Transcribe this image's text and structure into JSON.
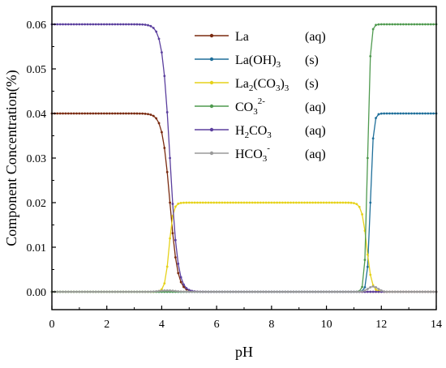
{
  "chart_data": {
    "type": "line",
    "xlabel": "pH",
    "ylabel": "Component Concentration(%)",
    "xlim": [
      0,
      14
    ],
    "ylim": [
      -0.004,
      0.064
    ],
    "x_ticks": [
      "0",
      "2",
      "4",
      "6",
      "8",
      "10",
      "12",
      "14"
    ],
    "y_ticks": [
      "0.00",
      "0.01",
      "0.02",
      "0.03",
      "0.04",
      "0.05",
      "0.06"
    ],
    "grid": false,
    "legend_position": "top-right",
    "x_sampling": {
      "start": 0,
      "end": 14,
      "step": 0.1
    },
    "series": [
      {
        "name": "La",
        "name_parts": [
          {
            "t": "La"
          }
        ],
        "state": "(aq)",
        "color": "#7a2a0f",
        "curve": "lam",
        "points": [
          [
            0,
            0.04
          ],
          [
            4.0,
            0.04
          ],
          [
            4.1,
            0.034
          ],
          [
            4.3,
            0.018
          ],
          [
            4.5,
            0.009
          ],
          [
            5.0,
            0.0025
          ],
          [
            6.0,
            0.0002
          ],
          [
            11.0,
            0.0
          ],
          [
            14.0,
            0.0
          ]
        ]
      },
      {
        "name": "La(OH)3",
        "name_parts": [
          {
            "t": "La(OH)"
          },
          {
            "t": "3",
            "sub": true
          }
        ],
        "state": "(s)",
        "color": "#1f6f9a",
        "curve": "lah",
        "points": [
          [
            0,
            0.0
          ],
          [
            11.3,
            0.0
          ],
          [
            11.5,
            0.005
          ],
          [
            11.6,
            0.03
          ],
          [
            11.8,
            0.04
          ],
          [
            14.0,
            0.04
          ]
        ]
      },
      {
        "name": "La2(CO3)3",
        "name_parts": [
          {
            "t": "La"
          },
          {
            "t": "2",
            "sub": true
          },
          {
            "t": "(CO"
          },
          {
            "t": "3",
            "sub": true
          },
          {
            "t": ")"
          },
          {
            "t": "3",
            "sub": true
          }
        ],
        "state": "(s)",
        "color": "#e6d21a",
        "curve": "carb",
        "points": [
          [
            0,
            0.0
          ],
          [
            4.0,
            0.0
          ],
          [
            4.3,
            0.012
          ],
          [
            4.6,
            0.018
          ],
          [
            5.0,
            0.0195
          ],
          [
            6.0,
            0.02
          ],
          [
            10.5,
            0.02
          ],
          [
            11.0,
            0.0195
          ],
          [
            11.4,
            0.013
          ],
          [
            11.7,
            0.0
          ],
          [
            14.0,
            0.0
          ]
        ]
      },
      {
        "name": "CO3 2-",
        "name_parts": [
          {
            "t": "CO"
          },
          {
            "t": "3",
            "sub": true
          },
          {
            "t": "2-",
            "sup": true
          }
        ],
        "state": "(aq)",
        "color": "#4f9a4f",
        "curve": "co3",
        "points": [
          [
            0,
            0.0
          ],
          [
            11.0,
            0.0
          ],
          [
            11.3,
            0.005
          ],
          [
            11.5,
            0.04
          ],
          [
            11.6,
            0.059
          ],
          [
            12.5,
            0.0598
          ],
          [
            14.0,
            0.06
          ]
        ]
      },
      {
        "name": "H2CO3",
        "name_parts": [
          {
            "t": "H"
          },
          {
            "t": "2",
            "sub": true
          },
          {
            "t": "CO"
          },
          {
            "t": "3",
            "sub": true
          }
        ],
        "state": "(aq)",
        "color": "#5b3f9e",
        "curve": "h2co3",
        "points": [
          [
            0,
            0.06
          ],
          [
            3.5,
            0.0599
          ],
          [
            4.0,
            0.059
          ],
          [
            4.1,
            0.05
          ],
          [
            4.3,
            0.025
          ],
          [
            4.5,
            0.011
          ],
          [
            5.0,
            0.003
          ],
          [
            6.0,
            0.0002
          ],
          [
            14.0,
            0.0
          ]
        ]
      },
      {
        "name": "HCO3-",
        "name_parts": [
          {
            "t": "HCO"
          },
          {
            "t": "3",
            "sub": true
          },
          {
            "t": "-",
            "sup": true
          }
        ],
        "state": "(aq)",
        "color": "#9a9a9a",
        "curve": "hco3",
        "points": [
          [
            0,
            0.0
          ],
          [
            4.0,
            0.0003
          ],
          [
            8.0,
            0.0
          ],
          [
            11.5,
            0.0005
          ],
          [
            11.7,
            0.0012
          ],
          [
            12.0,
            0.0004
          ],
          [
            14.0,
            0.0
          ]
        ]
      }
    ]
  }
}
